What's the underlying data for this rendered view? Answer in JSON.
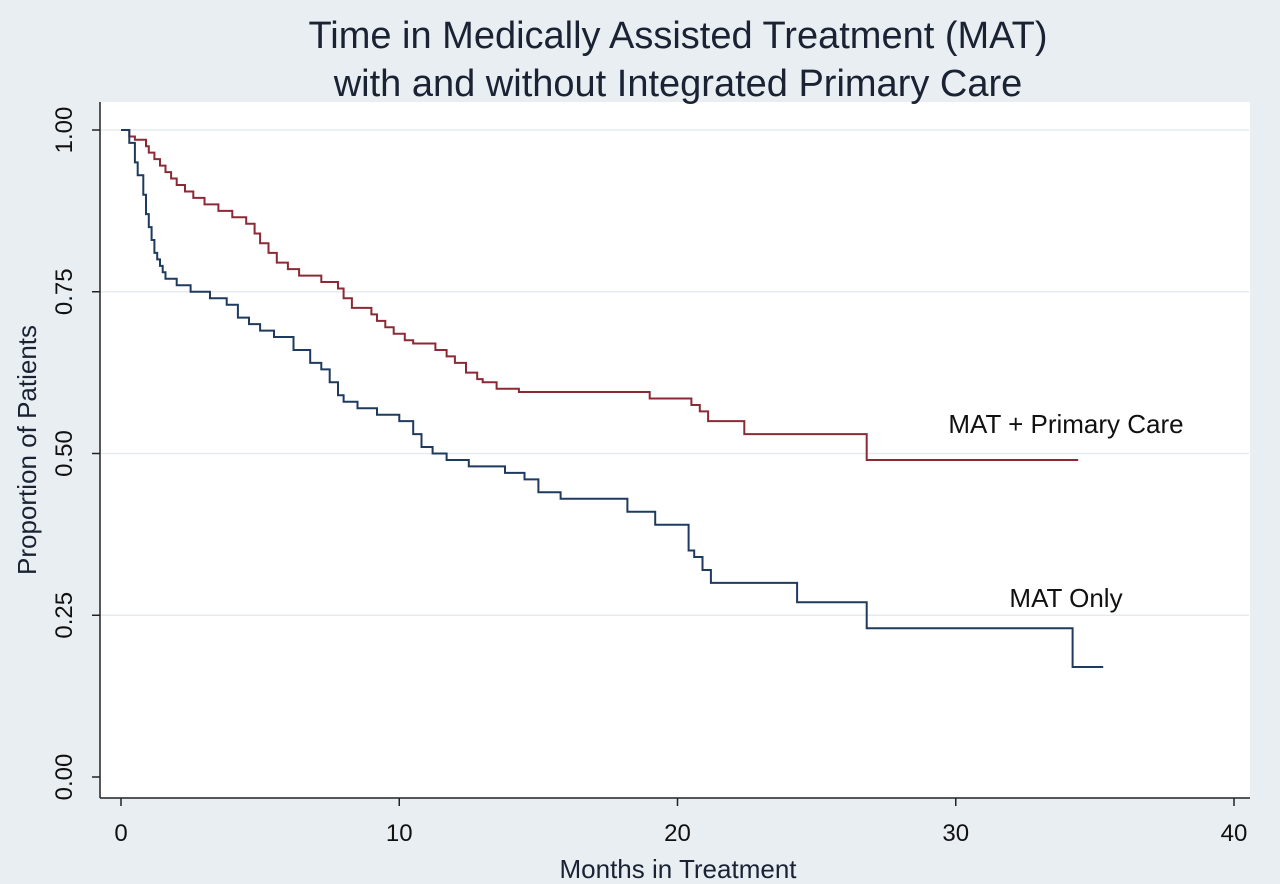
{
  "chart_data": {
    "type": "line",
    "step": true,
    "title_lines": [
      "Time in Medically Assisted Treatment (MAT)",
      "with and without Integrated Primary Care"
    ],
    "xlabel": "Months in Treatment",
    "ylabel": "Proportion of Patients",
    "xlim": [
      0,
      40
    ],
    "ylim": [
      0,
      1
    ],
    "x_ticks": [
      "0",
      "10",
      "20",
      "30",
      "40"
    ],
    "x_tick_values": [
      0,
      10,
      20,
      30,
      40
    ],
    "y_ticks": [
      "0.00",
      "0.25",
      "0.50",
      "0.75",
      "1.00"
    ],
    "y_tick_values": [
      0,
      0.25,
      0.5,
      0.75,
      1.0
    ],
    "grid": true,
    "legend": "none",
    "series": [
      {
        "label": "MAT + Primary Care",
        "color": "#8b2a35",
        "x": [
          0,
          0.3,
          0.5,
          0.9,
          1.0,
          1.2,
          1.4,
          1.6,
          1.8,
          2.0,
          2.3,
          2.6,
          3.0,
          3.5,
          4.0,
          4.5,
          4.8,
          5.0,
          5.3,
          5.6,
          6.0,
          6.4,
          7.2,
          7.8,
          8.0,
          8.3,
          9.0,
          9.2,
          9.5,
          9.8,
          10.2,
          10.5,
          11.3,
          11.7,
          12.0,
          12.4,
          12.8,
          13.0,
          13.5,
          14.3,
          19.0,
          20.5,
          20.8,
          21.1,
          22.4,
          26.8,
          34.4
        ],
        "y": [
          1.0,
          0.99,
          0.985,
          0.975,
          0.965,
          0.955,
          0.945,
          0.935,
          0.925,
          0.915,
          0.905,
          0.895,
          0.885,
          0.875,
          0.865,
          0.855,
          0.84,
          0.825,
          0.81,
          0.795,
          0.785,
          0.775,
          0.765,
          0.755,
          0.74,
          0.725,
          0.715,
          0.705,
          0.695,
          0.685,
          0.675,
          0.67,
          0.66,
          0.65,
          0.64,
          0.625,
          0.615,
          0.61,
          0.6,
          0.595,
          0.585,
          0.575,
          0.565,
          0.55,
          0.53,
          0.49,
          0.49
        ]
      },
      {
        "label": "MAT Only",
        "color": "#1f3a5f",
        "x": [
          0,
          0.3,
          0.5,
          0.6,
          0.8,
          0.9,
          1.0,
          1.1,
          1.2,
          1.3,
          1.4,
          1.5,
          1.6,
          2.0,
          2.5,
          3.2,
          3.8,
          4.2,
          4.6,
          5.0,
          5.5,
          6.2,
          6.8,
          7.2,
          7.5,
          7.8,
          8.0,
          8.5,
          9.2,
          10.0,
          10.5,
          10.8,
          11.2,
          11.7,
          12.5,
          13.8,
          14.5,
          15.0,
          15.8,
          18.2,
          19.2,
          20.4,
          20.6,
          20.9,
          21.2,
          21.4,
          24.3,
          26.8,
          34.2,
          35.3
        ],
        "y": [
          1.0,
          0.98,
          0.95,
          0.93,
          0.9,
          0.87,
          0.85,
          0.83,
          0.81,
          0.8,
          0.79,
          0.78,
          0.77,
          0.76,
          0.75,
          0.74,
          0.73,
          0.71,
          0.7,
          0.69,
          0.68,
          0.66,
          0.64,
          0.63,
          0.61,
          0.59,
          0.58,
          0.57,
          0.56,
          0.55,
          0.53,
          0.51,
          0.5,
          0.49,
          0.48,
          0.47,
          0.46,
          0.44,
          0.43,
          0.41,
          0.39,
          0.35,
          0.34,
          0.32,
          0.3,
          0.3,
          0.27,
          0.23,
          0.17,
          0.17
        ]
      }
    ]
  }
}
